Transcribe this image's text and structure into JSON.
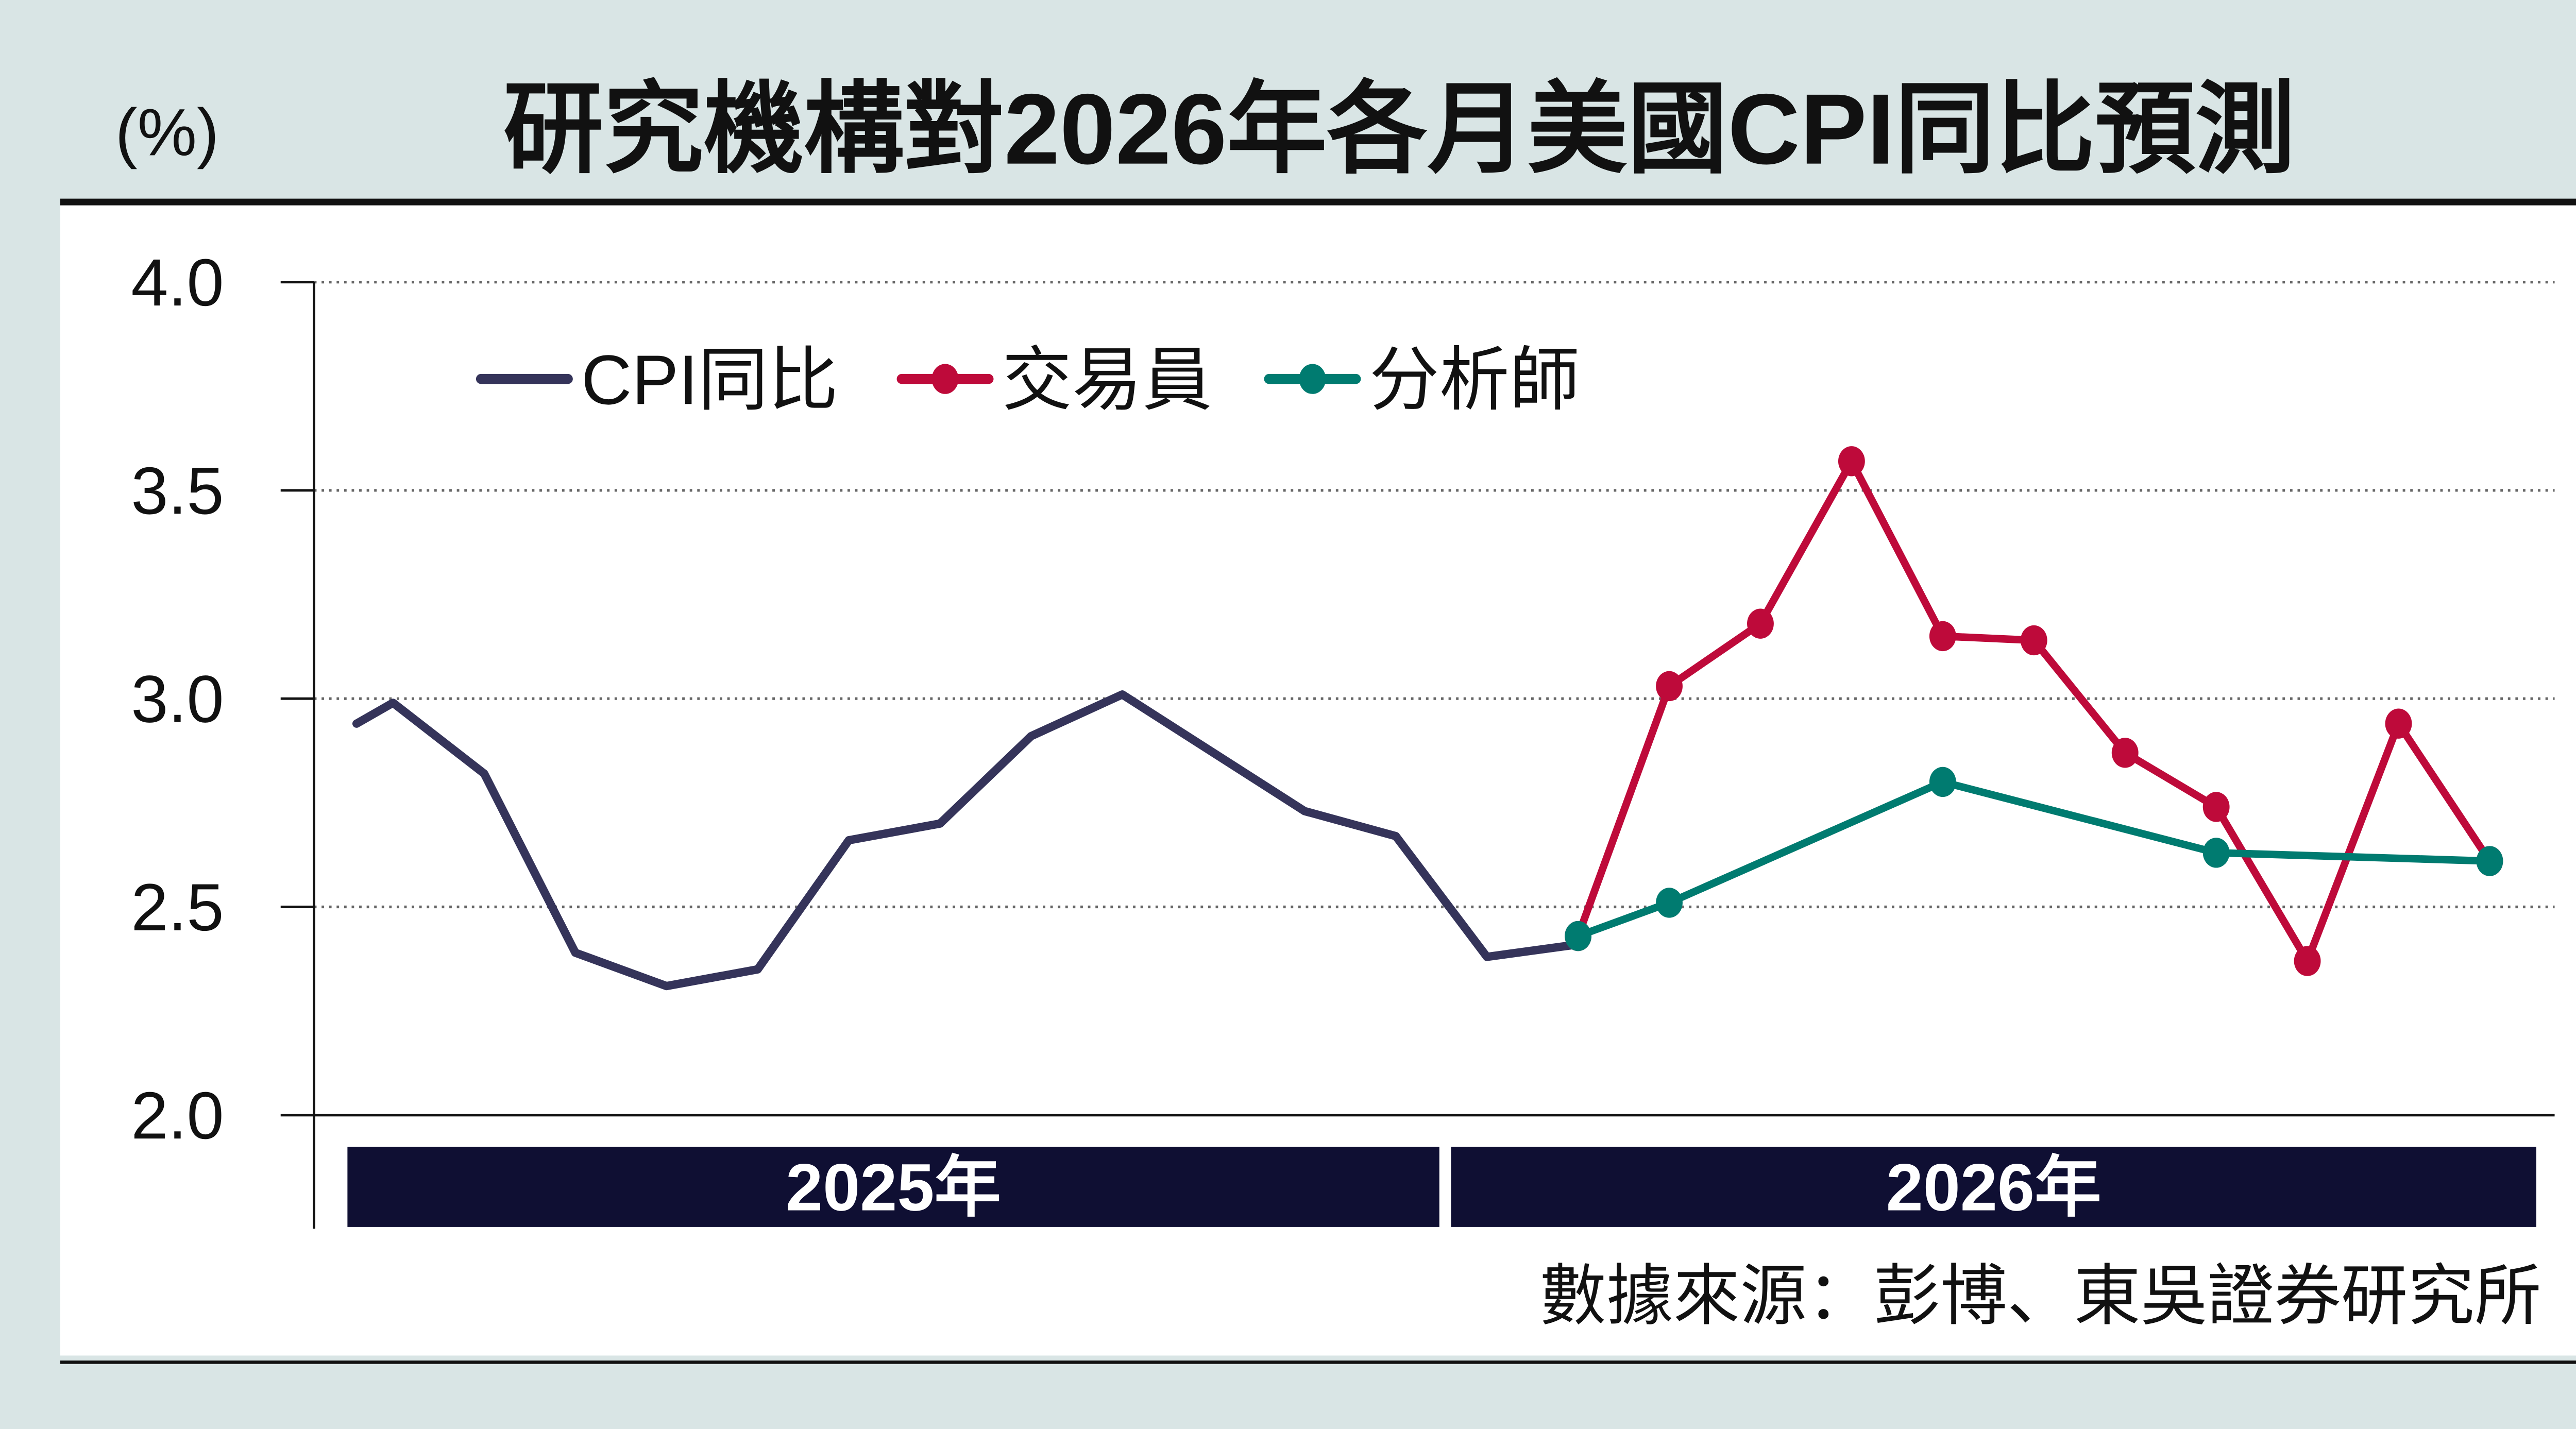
{
  "colors": {
    "background": "#d9e5e5",
    "cpi": "#35345a",
    "traders": "#be0a3a",
    "analysts": "#007b70",
    "year_band": "#0f0f33"
  },
  "chart_data": {
    "type": "line",
    "title": "研究機構對2026年各月美國CPI同比預測",
    "ylabel": "(%)",
    "xlabel": "",
    "ylim": [
      2.0,
      4.0
    ],
    "yticks": [
      "4.0",
      "3.5",
      "3.0",
      "2.5",
      "2.0"
    ],
    "x_unit": "month index (2025年1月 = 1)",
    "x_groups": [
      {
        "label": "2025年",
        "from": 1,
        "to": 12
      },
      {
        "label": "2026年",
        "from": 13,
        "to": 24
      }
    ],
    "grid": "horizontal dotted",
    "legend_position": "top-left",
    "series": [
      {
        "name": "CPI同比",
        "color": "#35345a",
        "markers": false,
        "x": [
          0.6,
          1,
          2,
          3,
          4,
          5,
          6,
          7,
          8,
          9,
          11,
          12,
          13,
          14
        ],
        "y": [
          2.94,
          2.99,
          2.82,
          2.39,
          2.31,
          2.35,
          2.66,
          2.7,
          2.91,
          3.01,
          2.73,
          2.67,
          2.38,
          2.41
        ]
      },
      {
        "name": "交易員",
        "color": "#be0a3a",
        "markers": true,
        "x": [
          14,
          15,
          16,
          17,
          18,
          19,
          20,
          21,
          22,
          23,
          24
        ],
        "y": [
          2.43,
          3.03,
          3.18,
          3.57,
          3.15,
          3.14,
          2.87,
          2.74,
          2.37,
          2.94,
          2.61
        ]
      },
      {
        "name": "分析師",
        "color": "#007b70",
        "markers": true,
        "x": [
          14,
          15,
          18,
          21,
          24
        ],
        "y": [
          2.43,
          2.51,
          2.8,
          2.63,
          2.61
        ]
      }
    ],
    "source": "數據來源：彭博、東吳證券研究所"
  }
}
